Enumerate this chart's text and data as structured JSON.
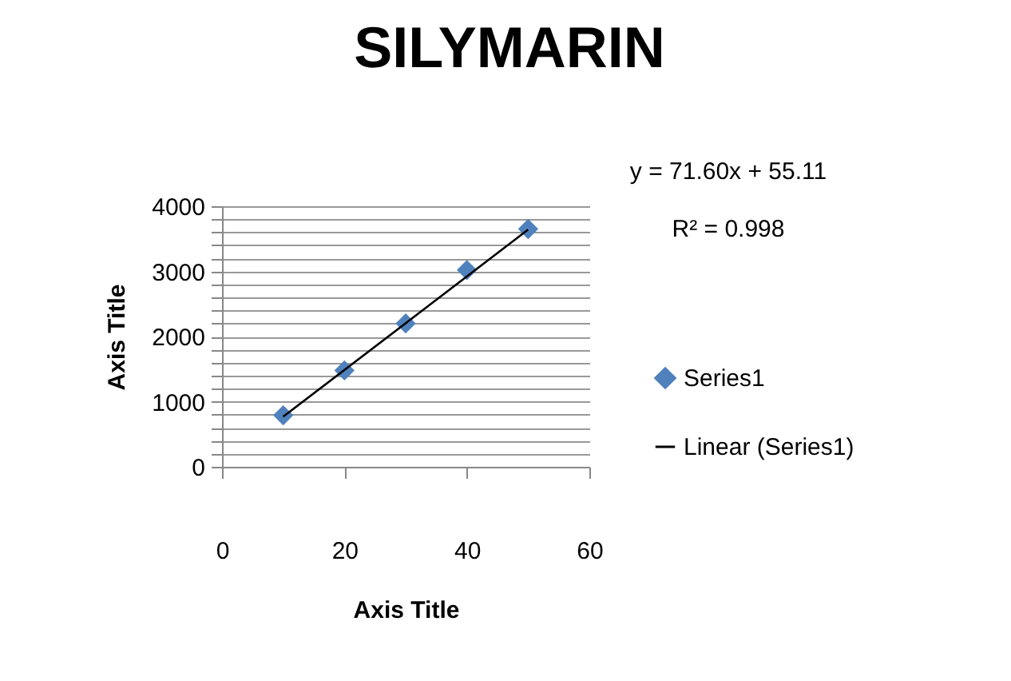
{
  "chart_data": {
    "type": "scatter",
    "title": "SILYMARIN",
    "xlabel": "Axis Title",
    "ylabel": "Axis Title",
    "annotations": [
      "y = 71.60x + 55.11",
      "R² = 0.998"
    ],
    "x": [
      10,
      20,
      30,
      40,
      50
    ],
    "series": [
      {
        "name": "Series1",
        "type": "scatter",
        "marker": "diamond",
        "color": "#4f81bd",
        "values": [
          790,
          1480,
          2200,
          3020,
          3650
        ]
      },
      {
        "name": "Linear (Series1)",
        "type": "line",
        "marker": "none",
        "color": "#000000",
        "x": [
          10,
          50
        ],
        "values": [
          770,
          3640
        ]
      }
    ],
    "xlim": [
      0,
      60
    ],
    "xticks": [
      0,
      20,
      40,
      60
    ],
    "ylim": [
      0,
      4000
    ],
    "yticks": [
      0,
      {
        "value": 200,
        "label": null
      },
      {
        "value": 400,
        "label": null
      },
      {
        "value": 600,
        "label": null
      },
      {
        "value": 800,
        "label": null
      },
      1000,
      {
        "value": 1200,
        "label": null
      },
      {
        "value": 1400,
        "label": null
      },
      {
        "value": 1600,
        "label": null
      },
      {
        "value": 1800,
        "label": null
      },
      2000,
      {
        "value": 2200,
        "label": null
      },
      {
        "value": 2400,
        "label": null
      },
      {
        "value": 2600,
        "label": null
      },
      {
        "value": 2800,
        "label": null
      },
      3000,
      {
        "value": 3200,
        "label": null
      },
      {
        "value": 3400,
        "label": null
      },
      {
        "value": 3600,
        "label": null
      },
      {
        "value": 3800,
        "label": null
      },
      4000
    ],
    "grid": "y",
    "legend": "right",
    "line_style": "solid"
  }
}
